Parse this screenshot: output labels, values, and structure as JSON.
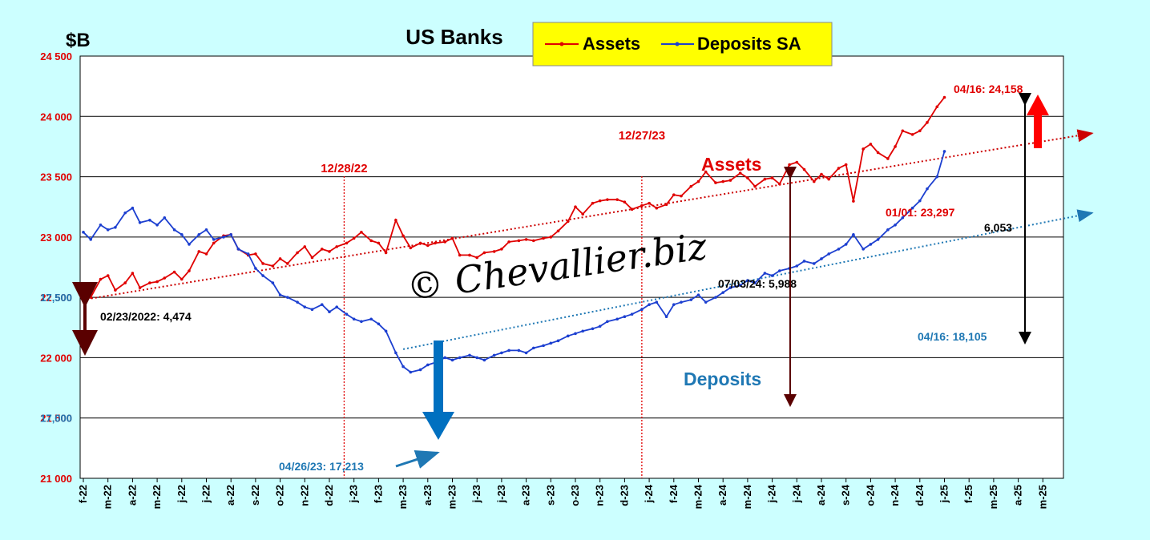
{
  "chart_data": {
    "type": "line",
    "title": "US Banks",
    "ylabel": "$B",
    "ylim_left": [
      21000,
      24500
    ],
    "ylim_right": [
      16750,
      18500
    ],
    "yticks_left": [
      "24 500",
      "24 000",
      "23 500",
      "23 000",
      "22 500",
      "22 000",
      "21 500",
      "21 000"
    ],
    "yticks_right": [
      "17,500",
      "17,000"
    ],
    "xticks": [
      "f-22",
      "m-22",
      "a-22",
      "m-22",
      "j-22",
      "j-22",
      "a-22",
      "s-22",
      "o-22",
      "n-22",
      "d-22",
      "j-23",
      "f-23",
      "m-23",
      "a-23",
      "m-23",
      "j-23",
      "j-23",
      "a-23",
      "s-23",
      "o-23",
      "n-23",
      "d-23",
      "j-24",
      "f-24",
      "m-24",
      "a-24",
      "m-24",
      "j-24",
      "j-24",
      "a-24",
      "s-24",
      "o-24",
      "n-24",
      "d-24",
      "j-25",
      "f-25",
      "m-25",
      "a-25",
      "m-25"
    ],
    "legend": {
      "placement": "top-center",
      "entries": [
        "Assets",
        "Deposits SA"
      ],
      "background": "#ffff00"
    },
    "grid": true,
    "series": [
      {
        "name": "Assets",
        "color": "#e00000",
        "axis": "left",
        "points": [
          [
            0,
            22480
          ],
          [
            0.3,
            22500
          ],
          [
            0.7,
            22650
          ],
          [
            1.0,
            22680
          ],
          [
            1.3,
            22560
          ],
          [
            1.7,
            22620
          ],
          [
            2.0,
            22700
          ],
          [
            2.3,
            22580
          ],
          [
            2.7,
            22620
          ],
          [
            3.0,
            22630
          ],
          [
            3.3,
            22660
          ],
          [
            3.7,
            22710
          ],
          [
            4.0,
            22650
          ],
          [
            4.3,
            22720
          ],
          [
            4.7,
            22880
          ],
          [
            5.0,
            22860
          ],
          [
            5.3,
            22950
          ],
          [
            5.7,
            23010
          ],
          [
            6.0,
            23020
          ],
          [
            6.3,
            22900
          ],
          [
            6.7,
            22850
          ],
          [
            7.0,
            22860
          ],
          [
            7.3,
            22780
          ],
          [
            7.7,
            22760
          ],
          [
            8.0,
            22820
          ],
          [
            8.3,
            22780
          ],
          [
            8.7,
            22870
          ],
          [
            9.0,
            22920
          ],
          [
            9.3,
            22830
          ],
          [
            9.7,
            22900
          ],
          [
            10.0,
            22880
          ],
          [
            10.3,
            22920
          ],
          [
            10.7,
            22950
          ],
          [
            11.0,
            22990
          ],
          [
            11.3,
            23040
          ],
          [
            11.7,
            22970
          ],
          [
            12.0,
            22950
          ],
          [
            12.3,
            22870
          ],
          [
            12.7,
            23140
          ],
          [
            13.0,
            23010
          ],
          [
            13.3,
            22910
          ],
          [
            13.7,
            22950
          ],
          [
            14.0,
            22930
          ],
          [
            14.3,
            22950
          ],
          [
            14.7,
            22960
          ],
          [
            15.0,
            22990
          ],
          [
            15.3,
            22850
          ],
          [
            15.7,
            22850
          ],
          [
            16.0,
            22830
          ],
          [
            16.3,
            22870
          ],
          [
            16.7,
            22880
          ],
          [
            17.0,
            22900
          ],
          [
            17.3,
            22960
          ],
          [
            17.7,
            22970
          ],
          [
            18.0,
            22980
          ],
          [
            18.3,
            22970
          ],
          [
            18.7,
            22990
          ],
          [
            19.0,
            23000
          ],
          [
            19.3,
            23050
          ],
          [
            19.7,
            23130
          ],
          [
            20.0,
            23250
          ],
          [
            20.3,
            23190
          ],
          [
            20.7,
            23280
          ],
          [
            21.0,
            23300
          ],
          [
            21.3,
            23310
          ],
          [
            21.7,
            23310
          ],
          [
            22.0,
            23290
          ],
          [
            22.3,
            23230
          ],
          [
            22.7,
            23260
          ],
          [
            23.0,
            23280
          ],
          [
            23.3,
            23240
          ],
          [
            23.7,
            23270
          ],
          [
            24.0,
            23350
          ],
          [
            24.3,
            23340
          ],
          [
            24.7,
            23420
          ],
          [
            25.0,
            23460
          ],
          [
            25.3,
            23540
          ],
          [
            25.7,
            23450
          ],
          [
            26.0,
            23460
          ],
          [
            26.3,
            23470
          ],
          [
            26.7,
            23530
          ],
          [
            27.0,
            23490
          ],
          [
            27.3,
            23420
          ],
          [
            27.7,
            23480
          ],
          [
            28.0,
            23490
          ],
          [
            28.3,
            23440
          ],
          [
            28.7,
            23600
          ],
          [
            29.0,
            23620
          ],
          [
            29.3,
            23560
          ],
          [
            29.7,
            23460
          ],
          [
            30.0,
            23520
          ],
          [
            30.3,
            23480
          ],
          [
            30.7,
            23570
          ],
          [
            31.0,
            23600
          ],
          [
            31.3,
            23297
          ],
          [
            31.7,
            23730
          ],
          [
            32.0,
            23770
          ],
          [
            32.3,
            23700
          ],
          [
            32.7,
            23650
          ],
          [
            33.0,
            23750
          ],
          [
            33.3,
            23880
          ],
          [
            33.7,
            23850
          ],
          [
            34.0,
            23880
          ],
          [
            34.3,
            23950
          ],
          [
            34.7,
            24080
          ],
          [
            35.0,
            24158
          ]
        ]
      },
      {
        "name": "Deposits SA",
        "color": "#1c3fd0",
        "axis": "right",
        "points": [
          [
            0,
            17770
          ],
          [
            0.3,
            17740
          ],
          [
            0.7,
            17800
          ],
          [
            1.0,
            17780
          ],
          [
            1.3,
            17790
          ],
          [
            1.7,
            17850
          ],
          [
            2.0,
            17870
          ],
          [
            2.3,
            17810
          ],
          [
            2.7,
            17820
          ],
          [
            3.0,
            17800
          ],
          [
            3.3,
            17830
          ],
          [
            3.7,
            17780
          ],
          [
            4.0,
            17760
          ],
          [
            4.3,
            17720
          ],
          [
            4.7,
            17760
          ],
          [
            5.0,
            17780
          ],
          [
            5.3,
            17740
          ],
          [
            5.7,
            17750
          ],
          [
            6.0,
            17760
          ],
          [
            6.3,
            17700
          ],
          [
            6.7,
            17680
          ],
          [
            7.0,
            17620
          ],
          [
            7.3,
            17590
          ],
          [
            7.7,
            17560
          ],
          [
            8.0,
            17510
          ],
          [
            8.3,
            17500
          ],
          [
            8.7,
            17480
          ],
          [
            9.0,
            17460
          ],
          [
            9.3,
            17450
          ],
          [
            9.7,
            17470
          ],
          [
            10.0,
            17440
          ],
          [
            10.3,
            17460
          ],
          [
            10.7,
            17430
          ],
          [
            11.0,
            17410
          ],
          [
            11.3,
            17400
          ],
          [
            11.7,
            17410
          ],
          [
            12.0,
            17390
          ],
          [
            12.3,
            17360
          ],
          [
            12.7,
            17270
          ],
          [
            13.0,
            17213
          ],
          [
            13.3,
            17190
          ],
          [
            13.7,
            17200
          ],
          [
            14.0,
            17220
          ],
          [
            14.3,
            17230
          ],
          [
            14.7,
            17250
          ],
          [
            15.0,
            17240
          ],
          [
            15.3,
            17250
          ],
          [
            15.7,
            17260
          ],
          [
            16.0,
            17250
          ],
          [
            16.3,
            17240
          ],
          [
            16.7,
            17260
          ],
          [
            17.0,
            17270
          ],
          [
            17.3,
            17280
          ],
          [
            17.7,
            17280
          ],
          [
            18.0,
            17270
          ],
          [
            18.3,
            17290
          ],
          [
            18.7,
            17300
          ],
          [
            19.0,
            17310
          ],
          [
            19.3,
            17320
          ],
          [
            19.7,
            17340
          ],
          [
            20.0,
            17350
          ],
          [
            20.3,
            17360
          ],
          [
            20.7,
            17370
          ],
          [
            21.0,
            17380
          ],
          [
            21.3,
            17400
          ],
          [
            21.7,
            17410
          ],
          [
            22.0,
            17420
          ],
          [
            22.3,
            17430
          ],
          [
            22.7,
            17450
          ],
          [
            23.0,
            17470
          ],
          [
            23.3,
            17480
          ],
          [
            23.7,
            17420
          ],
          [
            24.0,
            17470
          ],
          [
            24.3,
            17480
          ],
          [
            24.7,
            17490
          ],
          [
            25.0,
            17510
          ],
          [
            25.3,
            17480
          ],
          [
            25.7,
            17500
          ],
          [
            26.0,
            17520
          ],
          [
            26.3,
            17540
          ],
          [
            26.7,
            17550
          ],
          [
            27.0,
            17570
          ],
          [
            27.3,
            17560
          ],
          [
            27.7,
            17600
          ],
          [
            28.0,
            17590
          ],
          [
            28.3,
            17610
          ],
          [
            28.7,
            17620
          ],
          [
            29.0,
            17630
          ],
          [
            29.3,
            17650
          ],
          [
            29.7,
            17640
          ],
          [
            30.0,
            17660
          ],
          [
            30.3,
            17680
          ],
          [
            30.7,
            17700
          ],
          [
            31.0,
            17720
          ],
          [
            31.3,
            17760
          ],
          [
            31.7,
            17700
          ],
          [
            32.0,
            17720
          ],
          [
            32.3,
            17740
          ],
          [
            32.7,
            17780
          ],
          [
            33.0,
            17800
          ],
          [
            33.3,
            17830
          ],
          [
            33.7,
            17870
          ],
          [
            34.0,
            17900
          ],
          [
            34.3,
            17950
          ],
          [
            34.7,
            18000
          ],
          [
            35.0,
            18105
          ]
        ]
      }
    ],
    "trendlines": [
      {
        "series": "Assets",
        "color": "#cc0000",
        "from": [
          0,
          22480
        ],
        "to": [
          41,
          23860
        ]
      },
      {
        "series": "Deposits SA",
        "color": "#1f78b4",
        "from": [
          13,
          17285
        ],
        "to": [
          41,
          17850
        ]
      }
    ],
    "vlines": [
      {
        "x": 10.6,
        "label": "12/28/22"
      },
      {
        "x": 22.7,
        "label": "12/27/23"
      }
    ],
    "annotations": {
      "assets_label": "Assets",
      "deposits_label": "Deposits",
      "watermark": "© Chevallier.biz",
      "gap_2022": "02/23/2022: 4,474",
      "gap_2024": "07/03/24: 5,988",
      "gap_2025": "6,053",
      "assets_last": "04/16: 24,158",
      "assets_dip": "01/01: 23,297",
      "deposits_last": "04/16: 18,105",
      "deposits_low": "04/26/23: 17,213"
    }
  }
}
